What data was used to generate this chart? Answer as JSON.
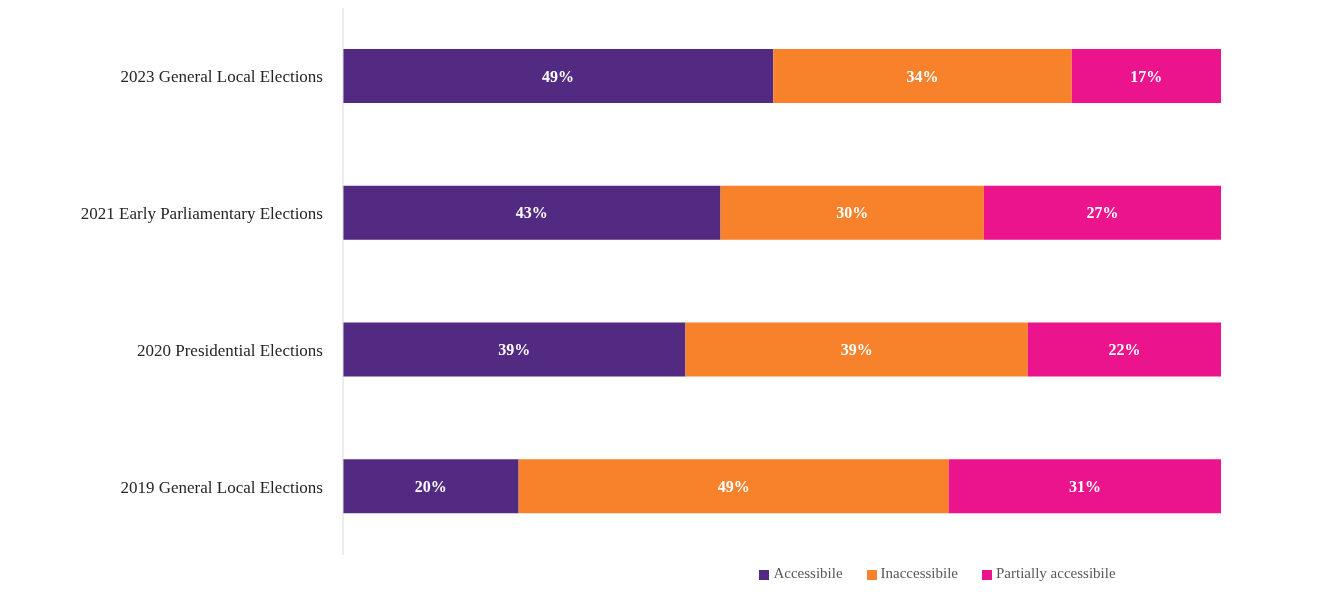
{
  "chart_data": {
    "type": "bar",
    "orientation": "horizontal",
    "stacked": true,
    "categories": [
      "2023 General Local Elections",
      "2021 Early Parliamentary Elections",
      "2020 Presidential Elections",
      "2019 General Local Elections"
    ],
    "series": [
      {
        "name": "Accessibile",
        "color": "#522a82",
        "values": [
          49,
          43,
          39,
          20
        ],
        "value_labels": [
          "49%",
          "43%",
          "39%",
          "20%"
        ]
      },
      {
        "name": "Inaccessibile",
        "color": "#f8822c",
        "values": [
          34,
          30,
          39,
          49
        ],
        "value_labels": [
          "34%",
          "30%",
          "39%",
          "49%"
        ]
      },
      {
        "name": "Partially accessibile",
        "color": "#ec148c",
        "values": [
          17,
          27,
          22,
          31
        ],
        "value_labels": [
          "17%",
          "27%",
          "22%",
          "31%"
        ]
      }
    ],
    "legend": "bottom",
    "grid": false,
    "tick_labels": "y"
  }
}
